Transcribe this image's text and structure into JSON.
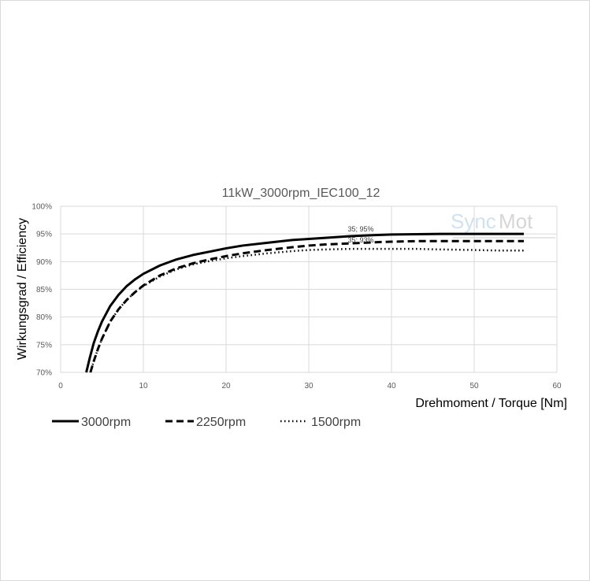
{
  "chart_data": {
    "type": "line",
    "title": "11kW_3000rpm_IEC100_12",
    "xlabel": "Drehmoment / Torque [Nm]",
    "ylabel": "Wirkungsgrad / Efficiency",
    "xlim": [
      0,
      60
    ],
    "ylim": [
      70,
      100
    ],
    "x_ticks": [
      "0",
      "10",
      "20",
      "30",
      "40",
      "50",
      "60"
    ],
    "y_ticks": [
      "70%",
      "75%",
      "80%",
      "85%",
      "90%",
      "95%",
      "100%"
    ],
    "grid": "vertical and horizontal major gridlines",
    "legend_position": "bottom",
    "watermark": [
      "Sync",
      "Mot"
    ],
    "annotations": [
      {
        "text": "35; 95%",
        "x": 35,
        "y": 95
      },
      {
        "text": "35; 93%",
        "x": 35,
        "y": 93
      }
    ],
    "series": [
      {
        "name": "3000rpm",
        "line_style": "solid",
        "x": [
          3.1,
          3.5,
          4,
          4.5,
          5,
          6,
          7,
          8,
          9,
          10,
          12,
          14,
          16,
          18,
          20,
          22,
          25,
          28,
          30,
          32,
          35,
          38,
          40,
          43,
          46,
          50,
          53,
          56
        ],
        "y": [
          70,
          72.5,
          75.3,
          77.4,
          79.2,
          82,
          84,
          85.6,
          86.8,
          87.8,
          89.3,
          90.4,
          91.2,
          91.8,
          92.4,
          92.9,
          93.4,
          93.9,
          94.1,
          94.3,
          94.6,
          94.8,
          94.9,
          94.95,
          95,
          95,
          95,
          95
        ]
      },
      {
        "name": "2250rpm",
        "line_style": "dashed",
        "x": [
          3.6,
          4,
          4.5,
          5,
          6,
          7,
          8,
          9,
          10,
          12,
          14,
          16,
          18,
          20,
          22,
          25,
          28,
          30,
          32,
          35,
          38,
          40,
          43,
          46,
          50,
          53,
          56
        ],
        "y": [
          70,
          72,
          74.2,
          76.1,
          79.2,
          81.4,
          83.1,
          84.5,
          85.7,
          87.5,
          88.8,
          89.7,
          90.4,
          91,
          91.5,
          92.1,
          92.6,
          92.9,
          93.1,
          93.3,
          93.5,
          93.6,
          93.7,
          93.7,
          93.7,
          93.7,
          93.7
        ]
      },
      {
        "name": "1500rpm",
        "line_style": "dotted",
        "x": [
          3.6,
          4,
          4.5,
          5,
          6,
          7,
          8,
          9,
          10,
          12,
          14,
          16,
          18,
          20,
          22,
          25,
          28,
          30,
          32,
          35,
          38,
          40,
          43,
          46,
          50,
          53,
          56
        ],
        "y": [
          70,
          72,
          74.2,
          76.1,
          79.2,
          81.4,
          83.1,
          84.5,
          85.6,
          87.3,
          88.6,
          89.5,
          90.1,
          90.6,
          91,
          91.5,
          91.9,
          92.1,
          92.2,
          92.3,
          92.3,
          92.3,
          92.3,
          92.2,
          92.1,
          92,
          92
        ]
      }
    ]
  }
}
